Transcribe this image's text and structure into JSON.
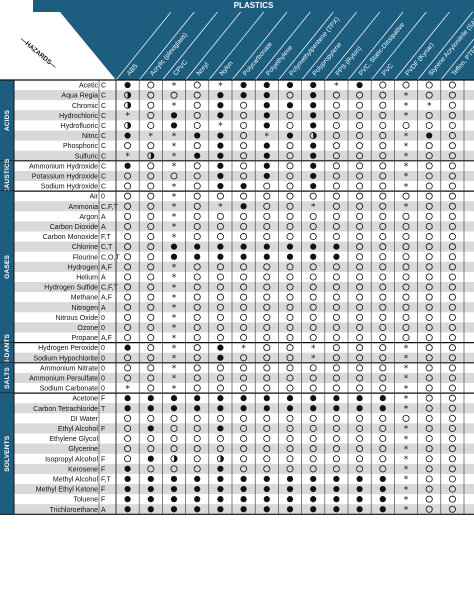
{
  "header": {
    "banner": "PLASTICS",
    "hazards_label": "HAZARDS",
    "columns": [
      "ABS",
      "Acrylic (plexiglass)",
      "CPVC",
      "Noryl",
      "Nylon",
      "Polycarbonate",
      "Polyethylene",
      "Polymethylpentene (TPX)",
      "Polypropylene",
      "PPS (Ryton)",
      "PVC, Static-Dissipative",
      "PVC",
      "PVDF (Kynar)",
      "Styrene Acrylonitrile (SAN)",
      "Teflon, PTFE"
    ]
  },
  "symbol_key": {
    "F": "filled",
    "O": "open",
    "H": "half",
    "S": "asterisk",
    "-": "blank"
  },
  "categories": [
    {
      "name": "ACIDS",
      "rows": [
        {
          "chemical": "Acetic",
          "hazard": "C",
          "cells": "FOSOSFFFFSFOOOO"
        },
        {
          "chemical": "Aqua Regia",
          "hazard": "C",
          "cells": "HOOOFFFOFOOOSOO"
        },
        {
          "chemical": "Chromic",
          "hazard": "C",
          "cells": "HOSOFOFFFOOOSSO"
        },
        {
          "chemical": "Hydrochloric",
          "hazard": "C",
          "cells": "SOFOFOFOFOOOSOO"
        },
        {
          "chemical": "Hydrofluoric",
          "hazard": "C",
          "cells": "HOFOSOFOFOOOOOO"
        },
        {
          "chemical": "Nitric",
          "hazard": "C",
          "cells": "FSSFFOSFHOOOSFO"
        },
        {
          "chemical": "Phosphoric",
          "hazard": "C",
          "cells": "OOSOFOFOFOOOSOO"
        },
        {
          "chemical": "Sulfuric",
          "hazard": "C",
          "cells": "SHSFFOFOFOOOSOO"
        }
      ]
    },
    {
      "name": "CAUSTICS",
      "rows": [
        {
          "chemical": "Ammonium Hydroxide",
          "hazard": "C",
          "cells": "FOSOFOFOFOOOSOO"
        },
        {
          "chemical": "Potassium Hydroxide",
          "hazard": "C",
          "cells": "OOOOFOFOFOOOSOO"
        },
        {
          "chemical": "Sodium Hydroxide",
          "hazard": "C",
          "cells": "OOSOFFOOFOOOSOO"
        }
      ]
    },
    {
      "name": "GASES",
      "rows": [
        {
          "chemical": "Air",
          "hazard": "0",
          "cells": "OOSOOOOOOOOOOOO"
        },
        {
          "chemical": "Ammonia",
          "hazard": "C,F,T",
          "cells": "OOSOSFOOSOOOSOO"
        },
        {
          "chemical": "Argon",
          "hazard": "A",
          "cells": "OOSOOOOOOOOOOOO"
        },
        {
          "chemical": "Carbon Dioxide",
          "hazard": "A",
          "cells": "OOSOOOOOOOOOOOO"
        },
        {
          "chemical": "Carbon Monoxide",
          "hazard": "F,T",
          "cells": "OOSOOOOOOOOOOOO"
        },
        {
          "chemical": "Chlorine",
          "hazard": "C,T",
          "cells": "OOFFFFFFFFOOOOO"
        },
        {
          "chemical": "Flourine",
          "hazard": "C,O,T",
          "cells": "OOFFFFFFFFOOOOO"
        },
        {
          "chemical": "Hydrogen",
          "hazard": "A,F",
          "cells": "OOSOOOOOOOOOOOO"
        },
        {
          "chemical": "Helium",
          "hazard": "A",
          "cells": "OOSOOOOOOOOOOOO"
        },
        {
          "chemical": "Hydrogen Sulfide",
          "hazard": "C,F,T",
          "cells": "OOSOOOOOOOOOOOO"
        },
        {
          "chemical": "Methane",
          "hazard": "A,F",
          "cells": "OOSOOOOOOOOOOOO"
        },
        {
          "chemical": "Nitrogen",
          "hazard": "A",
          "cells": "OOSOOOOOOOOOOOO"
        },
        {
          "chemical": "Nitrous Oxide",
          "hazard": "0",
          "cells": "OOSOOOOOOOOOOOO"
        },
        {
          "chemical": "Ozone",
          "hazard": "0",
          "cells": "OOSOOOOOOOOOOOO"
        },
        {
          "chemical": "Propane",
          "hazard": "A,F",
          "cells": "OOSOOOOOOOOOOOO"
        }
      ]
    },
    {
      "name": "OXI-DANTS",
      "rows": [
        {
          "chemical": "Hydrogen Peroxide",
          "hazard": "0",
          "cells": "FOSOFSOOSOOOSOO"
        },
        {
          "chemical": "Sodium Hypochlorite",
          "hazard": "0",
          "cells": "OOSOFOOOSOOOSOO"
        }
      ]
    },
    {
      "name": "SALTS",
      "rows": [
        {
          "chemical": "Ammonium Nitrate",
          "hazard": "0",
          "cells": "OOSOOOOOOOOOSOO"
        },
        {
          "chemical": "Ammonium Persulfate",
          "hazard": "0",
          "cells": "OOSOOOOOOOOOSOO"
        },
        {
          "chemical": "Sodium Carbonate",
          "hazard": "0",
          "cells": "SOSOOOOOOOOOSOO"
        }
      ]
    },
    {
      "name": "SOLVENTS",
      "rows": [
        {
          "chemical": "Acetone",
          "hazard": "F",
          "cells": "FFFFFFFFFFFFSOO"
        },
        {
          "chemical": "Carbon Tetrachloride",
          "hazard": "T",
          "cells": "FFFFFFFFFFFFSOO"
        },
        {
          "chemical": "DI Water",
          "hazard": "",
          "cells": "OOOOOOOOOOOOOOO"
        },
        {
          "chemical": "Ethyl Alcohol",
          "hazard": "F",
          "cells": "OFOOFOOOOOOOSOO"
        },
        {
          "chemical": "Ethylene Glycol",
          "hazard": "",
          "cells": "OOOOOOOOOOOOSOO"
        },
        {
          "chemical": "Glycerine",
          "hazard": "",
          "cells": "OOOOOOOOOOOOSOO"
        },
        {
          "chemical": "Isopropyl Alcohol",
          "hazard": "F",
          "cells": "OFHOHOOOOOOOSOO"
        },
        {
          "chemical": "Kerosene",
          "hazard": "F",
          "cells": "FOOOFOOOOOOOSOO"
        },
        {
          "chemical": "Methyl Alcohol",
          "hazard": "F,T",
          "cells": "FFFFFFFFFFFFSOO"
        },
        {
          "chemical": "Methyl Ethyl Ketone",
          "hazard": "F",
          "cells": "FFFFFFFFFFFFSOO"
        },
        {
          "chemical": "Toluene",
          "hazard": "F",
          "cells": "FFFFFFFFFFFFSOO"
        },
        {
          "chemical": "Trichloroethane",
          "hazard": "A",
          "cells": "FFFFFFFFFFFFSOO"
        }
      ]
    }
  ],
  "colors": {
    "header": "#1d5e80",
    "category_band": "#1d5e80",
    "stripe": "#d9d9d9",
    "line": "#333333"
  }
}
